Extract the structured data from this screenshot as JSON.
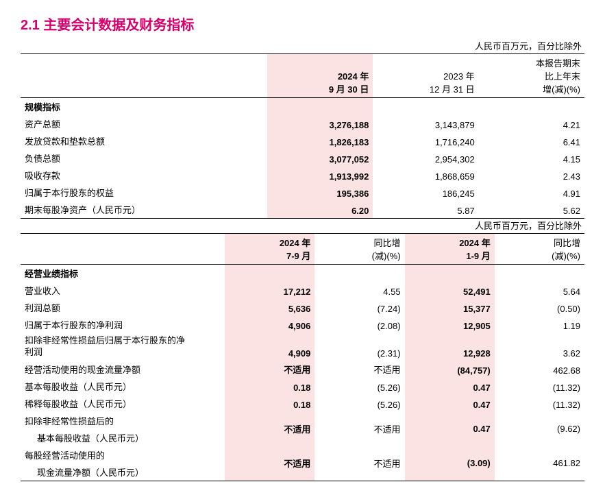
{
  "title": "2.1 主要会计数据及财务指标",
  "unit_note": "人民币百万元，百分比除外",
  "colors": {
    "title": "#d6006c",
    "highlight_bg": "#fbe3e3",
    "text": "#000000",
    "border": "#000000",
    "background": "#ffffff"
  },
  "table1": {
    "headers": {
      "c1": "2024 年\n9 月 30 日",
      "c2": "2023 年\n12 月 31 日",
      "c3": "本报告期末\n比上年末\n增(减)(%)"
    },
    "section": "规模指标",
    "rows": [
      {
        "label": "资产总额",
        "v1": "3,276,188",
        "v2": "3,143,879",
        "v3": "4.21"
      },
      {
        "label": "发放贷款和垫款总额",
        "v1": "1,826,183",
        "v2": "1,716,240",
        "v3": "6.41"
      },
      {
        "label": "负债总额",
        "v1": "3,077,052",
        "v2": "2,954,302",
        "v3": "4.15"
      },
      {
        "label": "吸收存款",
        "v1": "1,913,992",
        "v2": "1,868,659",
        "v3": "2.43"
      },
      {
        "label": "归属于本行股东的权益",
        "v1": "195,386",
        "v2": "186,245",
        "v3": "4.91"
      },
      {
        "label": "期末每股净资产（人民币元）",
        "v1": "6.20",
        "v2": "5.87",
        "v3": "5.62"
      }
    ]
  },
  "table2": {
    "headers": {
      "c1": "2024 年\n7-9 月",
      "c2": "同比增\n(减)(%)",
      "c3": "2024 年\n1-9 月",
      "c4": "同比增\n(减)(%)"
    },
    "section": "经营业绩指标",
    "rows": [
      {
        "label": "营业收入",
        "v1": "17,212",
        "v2": "4.55",
        "v3": "52,491",
        "v4": "5.64"
      },
      {
        "label": "利润总额",
        "v1": "5,636",
        "v2": "(7.24)",
        "v3": "15,377",
        "v4": "(0.50)"
      },
      {
        "label": "归属于本行股东的净利润",
        "v1": "4,906",
        "v2": "(2.08)",
        "v3": "12,905",
        "v4": "1.19"
      },
      {
        "label": "扣除非经常性损益后归属于本行股东的净\n利润",
        "v1": "4,909",
        "v2": "(2.31)",
        "v3": "12,928",
        "v4": "3.62",
        "wrap": true
      },
      {
        "label": "经营活动使用的现金流量净额",
        "v1": "不适用",
        "v2": "不适用",
        "v3": "(84,757)",
        "v4": "462.68"
      },
      {
        "label": "基本每股收益（人民币元）",
        "v1": "0.18",
        "v2": "(5.26)",
        "v3": "0.47",
        "v4": "(11.32)"
      },
      {
        "label": "稀释每股收益（人民币元）",
        "v1": "0.18",
        "v2": "(5.26)",
        "v3": "0.47",
        "v4": "(11.32)"
      },
      {
        "label": "扣除非经常性损益后的",
        "sub": "基本每股收益（人民币元）",
        "v1": "不适用",
        "v2": "不适用",
        "v3": "0.47",
        "v4": "(9.62)",
        "two": true
      },
      {
        "label": "每股经营活动使用的",
        "sub": "现金流量净额（人民币元）",
        "v1": "不适用",
        "v2": "不适用",
        "v3": "(3.09)",
        "v4": "461.82",
        "two": true
      }
    ]
  }
}
